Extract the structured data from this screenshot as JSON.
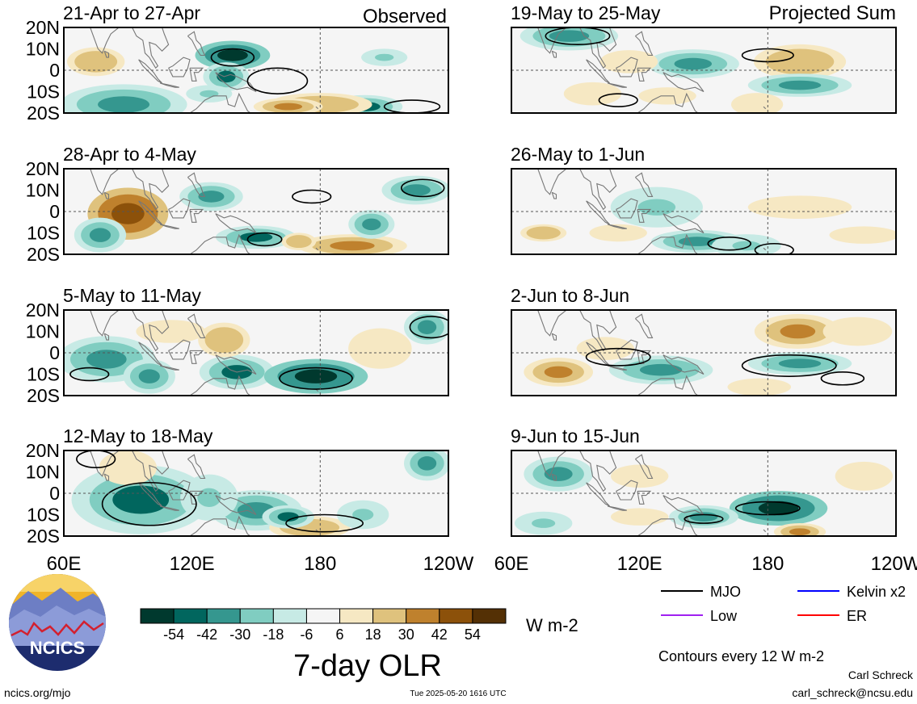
{
  "figure": {
    "title": "7-day OLR",
    "units": "W m-2",
    "contour_note": "Contours every 12 W m-2",
    "website": "ncics.org/mjo",
    "timestamp": "Tue 2025-05-20 1616 UTC",
    "author": "Carl Schreck",
    "email": "carl_schreck@ncsu.edu",
    "logo_text": "NCICS",
    "column_labels": [
      "Observed",
      "Projected Sum"
    ]
  },
  "colors": {
    "scale": [
      "#00392e",
      "#01665e",
      "#35978f",
      "#80cdc1",
      "#c7eae5",
      "#f5f5f5",
      "#f6e8c3",
      "#dfc27d",
      "#bf812d",
      "#8c510a",
      "#543005"
    ],
    "contour": "#000000",
    "map_lines": "#777777",
    "mjo": "#000000",
    "kelvin": "#0000ff",
    "low": "#a020f0",
    "er": "#ff0000"
  },
  "legend": [
    {
      "label": "MJO",
      "color": "#000000"
    },
    {
      "label": "Kelvin x2",
      "color": "#0000ff"
    },
    {
      "label": "Low",
      "color": "#a020f0"
    },
    {
      "label": "ER",
      "color": "#ff0000"
    }
  ],
  "chart_data": {
    "type": "heatmap",
    "title": "7-day OLR",
    "colorbar": {
      "ticks": [
        "-54",
        "-42",
        "-30",
        "-18",
        "-6",
        "6",
        "18",
        "30",
        "42",
        "54"
      ],
      "units": "W m-2"
    },
    "xaxis": {
      "ticks": [
        "60E",
        "120E",
        "180",
        "120W"
      ],
      "range": [
        60,
        240
      ]
    },
    "yaxis": {
      "ticks": [
        "20N",
        "10N",
        "0",
        "10S",
        "20S"
      ],
      "range": [
        -20,
        20
      ]
    },
    "panels": [
      {
        "label": "21-Apr to 27-Apr",
        "column": "Observed",
        "blobs": [
          [
            88,
            -16,
            22,
            7,
            -30
          ],
          [
            139,
            7,
            13,
            5,
            -54
          ],
          [
            136,
            -3,
            8,
            5,
            -42
          ],
          [
            201,
            -17,
            13,
            4,
            -42
          ],
          [
            180,
            -16,
            18,
            4,
            30
          ],
          [
            165,
            -17,
            12,
            3,
            42
          ],
          [
            75,
            4,
            10,
            5,
            30
          ],
          [
            210,
            6,
            8,
            3,
            -18
          ],
          [
            128,
            -11,
            8,
            3,
            -18
          ]
        ],
        "contours": [
          [
            139,
            6,
            10,
            4
          ],
          [
            160,
            -5,
            14,
            6
          ],
          [
            223,
            -17,
            13,
            3
          ]
        ]
      },
      {
        "label": "28-Apr to 4-May",
        "column": "Observed",
        "blobs": [
          [
            90,
            -1,
            14,
            9,
            54
          ],
          [
            77,
            -11,
            9,
            6,
            -30
          ],
          [
            129,
            7,
            11,
            5,
            -30
          ],
          [
            150,
            -12,
            14,
            4,
            -42
          ],
          [
            195,
            -16,
            19,
            4,
            42
          ],
          [
            204,
            -6,
            8,
            5,
            -30
          ],
          [
            225,
            10,
            12,
            5,
            -30
          ],
          [
            170,
            -14,
            6,
            3,
            30
          ]
        ],
        "contours": [
          [
            154,
            -13,
            8,
            3
          ],
          [
            176,
            7,
            9,
            3
          ],
          [
            228,
            11,
            10,
            4
          ]
        ]
      },
      {
        "label": "5-May to 11-May",
        "column": "Observed",
        "blobs": [
          [
            80,
            -3,
            17,
            8,
            -30
          ],
          [
            141,
            -9,
            13,
            6,
            -42
          ],
          [
            178,
            -11,
            18,
            6,
            -54
          ],
          [
            135,
            6,
            9,
            6,
            30
          ],
          [
            208,
            2,
            11,
            7,
            18
          ],
          [
            230,
            12,
            8,
            6,
            -30
          ],
          [
            100,
            -11,
            9,
            6,
            -30
          ],
          [
            110,
            10,
            12,
            4,
            18
          ]
        ],
        "contours": [
          [
            178,
            -12,
            17,
            5
          ],
          [
            72,
            -10,
            9,
            3
          ],
          [
            232,
            12,
            10,
            5
          ]
        ]
      },
      {
        "label": "12-May to 18-May",
        "column": "Observed",
        "blobs": [
          [
            96,
            -3,
            24,
            12,
            -42
          ],
          [
            150,
            -8,
            16,
            7,
            -30
          ],
          [
            175,
            -16,
            14,
            4,
            30
          ],
          [
            230,
            14,
            8,
            6,
            -30
          ],
          [
            128,
            -2,
            10,
            8,
            -18
          ],
          [
            200,
            -10,
            9,
            5,
            -18
          ],
          [
            90,
            12,
            10,
            6,
            18
          ],
          [
            165,
            -11,
            9,
            4,
            -42
          ]
        ],
        "contours": [
          [
            100,
            -5,
            22,
            10
          ],
          [
            182,
            -14,
            18,
            4
          ],
          [
            75,
            16,
            9,
            4
          ]
        ]
      },
      {
        "label": "19-May to 25-May",
        "column": "Projected Sum",
        "blobs": [
          [
            87,
            16,
            17,
            5,
            -30
          ],
          [
            145,
            3,
            16,
            5,
            -30
          ],
          [
            195,
            4,
            16,
            6,
            30
          ],
          [
            195,
            -7,
            18,
            4,
            -30
          ],
          [
            98,
            -11,
            10,
            4,
            18
          ],
          [
            133,
            -12,
            10,
            3,
            18
          ],
          [
            175,
            -16,
            9,
            4,
            18
          ],
          [
            115,
            4,
            10,
            4,
            18
          ]
        ],
        "contours": [
          [
            91,
            16,
            15,
            4
          ],
          [
            180,
            7,
            12,
            3
          ],
          [
            110,
            -14,
            9,
            3
          ]
        ]
      },
      {
        "label": "26-May to 1-Jun",
        "column": "Projected Sum",
        "blobs": [
          [
            128,
            2,
            16,
            7,
            -18
          ],
          [
            147,
            -14,
            16,
            4,
            -30
          ],
          [
            195,
            2,
            18,
            4,
            18
          ],
          [
            75,
            -10,
            8,
            3,
            30
          ],
          [
            110,
            -10,
            10,
            3,
            18
          ],
          [
            170,
            -16,
            12,
            4,
            -18
          ],
          [
            225,
            -11,
            12,
            3,
            18
          ]
        ],
        "contours": [
          [
            162,
            -15,
            10,
            3
          ],
          [
            183,
            -18,
            9,
            3
          ]
        ]
      },
      {
        "label": "2-Jun to 8-Jun",
        "column": "Projected Sum",
        "blobs": [
          [
            82,
            -9,
            12,
            5,
            42
          ],
          [
            130,
            -8,
            18,
            5,
            -30
          ],
          [
            195,
            -5,
            18,
            4,
            -30
          ],
          [
            194,
            10,
            15,
            6,
            42
          ],
          [
            104,
            2,
            10,
            4,
            18
          ],
          [
            176,
            -16,
            11,
            3,
            18
          ],
          [
            222,
            10,
            12,
            5,
            18
          ]
        ],
        "contours": [
          [
            190,
            -6,
            22,
            5
          ],
          [
            110,
            -2,
            15,
            4
          ],
          [
            215,
            -12,
            10,
            3
          ]
        ]
      },
      {
        "label": "9-Jun to 15-Jun",
        "column": "Projected Sum",
        "blobs": [
          [
            185,
            -7,
            17,
            6,
            -54
          ],
          [
            150,
            -11,
            12,
            4,
            -30
          ],
          [
            75,
            -14,
            10,
            4,
            -18
          ],
          [
            82,
            9,
            12,
            6,
            -30
          ],
          [
            120,
            8,
            10,
            4,
            18
          ],
          [
            195,
            -18,
            9,
            3,
            42
          ],
          [
            120,
            -11,
            10,
            3,
            18
          ],
          [
            225,
            8,
            10,
            5,
            18
          ]
        ],
        "contours": [
          [
            180,
            -7,
            15,
            3
          ],
          [
            150,
            -12,
            9,
            2
          ]
        ]
      }
    ]
  }
}
